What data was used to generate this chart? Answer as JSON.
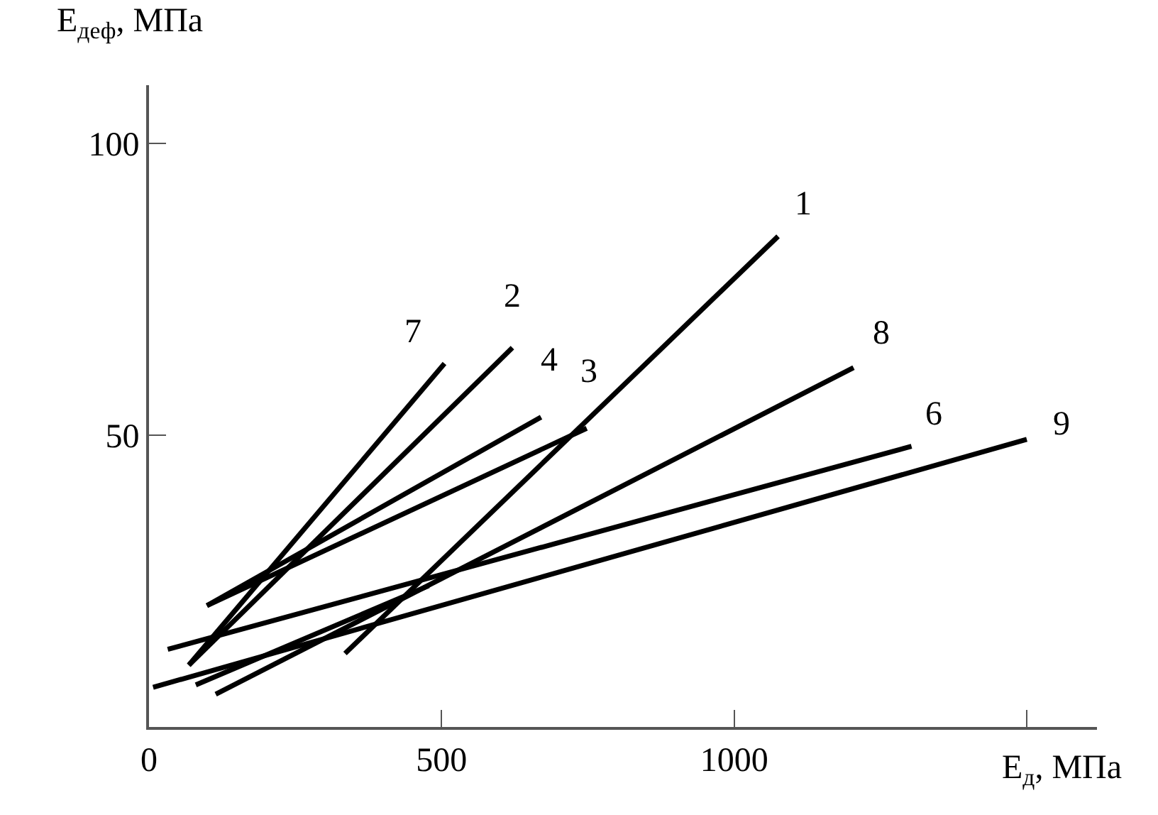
{
  "chart_data": {
    "type": "line",
    "xlabel": "E$_{д}$, МПа",
    "ylabel": "E$_{деф}$, МПа",
    "xlim": [
      0,
      1620
    ],
    "ylim": [
      0,
      110
    ],
    "xticks": [
      0,
      500,
      1000,
      {
        "value": 1500,
        "label": null
      }
    ],
    "yticks": [
      50,
      100
    ],
    "grid": false,
    "legend": false,
    "marker": "none",
    "line_style": "solid",
    "series": [
      {
        "name": "1",
        "color": "#000000",
        "x": [
          335,
          1075
        ],
        "values": [
          12.6,
          84.1
        ]
      },
      {
        "name": "2",
        "color": "#000000",
        "x": [
          68,
          621
        ],
        "values": [
          10.6,
          65.0
        ]
      },
      {
        "name": "7",
        "color": "#000000",
        "x": [
          68,
          505
        ],
        "values": [
          10.6,
          62.3
        ]
      },
      {
        "name": "4",
        "color": "#000000",
        "x": [
          99,
          670
        ],
        "values": [
          20.8,
          53.1
        ]
      },
      {
        "name": "3",
        "color": "#000000",
        "x": [
          99,
          748
        ],
        "values": [
          20.8,
          51.2
        ]
      },
      {
        "name": "8",
        "color": "#000000",
        "x": [
          114,
          1204
        ],
        "values": [
          5.6,
          61.6
        ]
      },
      {
        "name": "6",
        "color": "#000000",
        "x": [
          32,
          1303
        ],
        "values": [
          13.3,
          48.1
        ]
      },
      {
        "name": "9",
        "color": "#000000",
        "x": [
          7,
          1500
        ],
        "values": [
          6.8,
          49.3
        ]
      },
      {
        "color": "#000000",
        "x": [
          80,
          478
        ],
        "values": [
          7.2,
          24.2
        ]
      }
    ]
  }
}
